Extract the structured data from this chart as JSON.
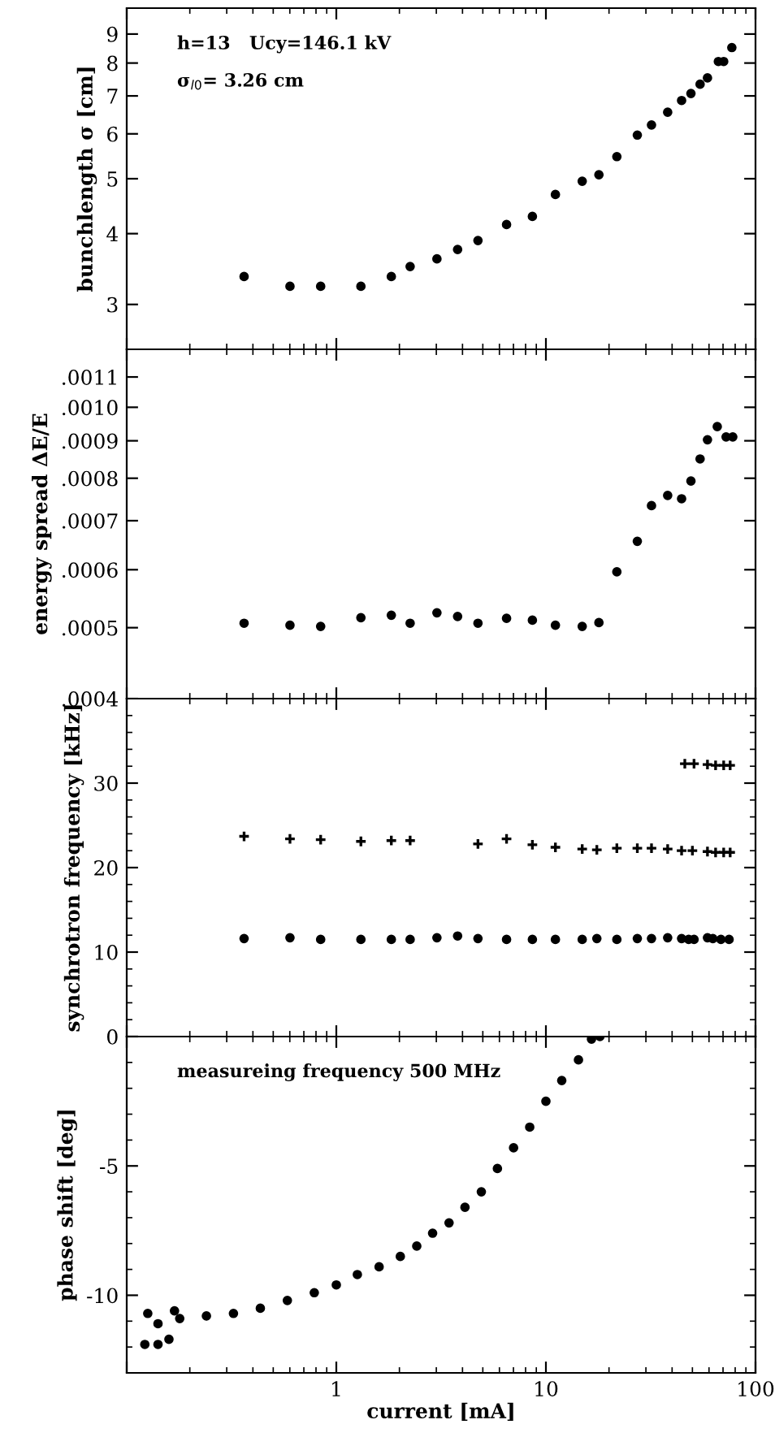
{
  "chart_data": [
    {
      "type": "scatter",
      "ylabel": "bunchlength σ [cm]",
      "log": "xy",
      "xlim": [
        0.1,
        100
      ],
      "xticks": [
        {
          "value": 0.1,
          "label": null
        },
        {
          "value": 1,
          "label": null
        },
        {
          "value": 10,
          "label": null
        },
        {
          "value": 100,
          "label": null
        }
      ],
      "ylim": [
        2.5,
        10
      ],
      "yticks": [
        3,
        4,
        5,
        6,
        7,
        8,
        9
      ],
      "tick_labels": "y",
      "marker": "circle",
      "annotations": [
        "h=13   Ucy=146.1 kV",
        "σ$_{l0}$= 3.26 cm"
      ],
      "series": [
        {
          "color": "#000000",
          "x": [
            0.363,
            0.601,
            0.842,
            1.31,
            1.83,
            2.25,
            3.02,
            3.79,
            4.74,
            6.49,
            8.62,
            11.1,
            14.9,
            17.9,
            21.8,
            27.3,
            31.9,
            38.1,
            44.4,
            49.2,
            54.4,
            59.0,
            66.5,
            70.5,
            77.1
          ],
          "values": [
            3.36,
            3.23,
            3.23,
            3.23,
            3.36,
            3.5,
            3.61,
            3.75,
            3.89,
            4.15,
            4.29,
            4.69,
            4.95,
            5.08,
            5.47,
            5.97,
            6.22,
            6.55,
            6.87,
            7.07,
            7.34,
            7.53,
            8.05,
            8.05,
            8.52
          ]
        }
      ]
    },
    {
      "type": "scatter",
      "ylabel": "energy spread ΔE/E",
      "log": "xy",
      "xlim": [
        0.1,
        100
      ],
      "xticks": [
        {
          "value": 0.1,
          "label": null
        },
        {
          "value": 1,
          "label": null
        },
        {
          "value": 10,
          "label": null
        },
        {
          "value": 100,
          "label": null
        }
      ],
      "ylim": [
        0.0004,
        0.0012
      ],
      "yticks": [
        {
          "value": 0.0004,
          "label": ".0004"
        },
        {
          "value": 0.0005,
          "label": ".0005"
        },
        {
          "value": 0.0006,
          "label": ".0006"
        },
        {
          "value": 0.0007,
          "label": ".0007"
        },
        {
          "value": 0.0008,
          "label": ".0008"
        },
        {
          "value": 0.0009,
          "label": ".0009"
        },
        {
          "value": 0.001,
          "label": ".0010"
        },
        {
          "value": 0.0011,
          "label": ".0011"
        }
      ],
      "tick_labels": "y",
      "marker": "circle",
      "series": [
        {
          "color": "#000000",
          "x": [
            0.363,
            0.601,
            0.842,
            1.31,
            1.83,
            2.25,
            3.02,
            3.79,
            4.74,
            6.49,
            8.62,
            11.1,
            14.9,
            17.9,
            21.8,
            27.3,
            31.9,
            38.1,
            44.4,
            49.2,
            54.4,
            59.0,
            65.7,
            72.4,
            77.9
          ],
          "values": [
            0.000507,
            0.000504,
            0.000502,
            0.000516,
            0.00052,
            0.000507,
            0.000524,
            0.000518,
            0.000507,
            0.000515,
            0.000512,
            0.000504,
            0.000502,
            0.000508,
            0.000596,
            0.000656,
            0.000734,
            0.000758,
            0.00075,
            0.000793,
            0.00085,
            0.000903,
            0.000941,
            0.000911,
            0.000911
          ]
        }
      ]
    },
    {
      "type": "scatter",
      "ylabel": "synchrotron frequency [kHz]",
      "log": "x",
      "xlim": [
        0.1,
        100
      ],
      "xticks": [
        {
          "value": 0.1,
          "label": null
        },
        {
          "value": 1,
          "label": null
        },
        {
          "value": 10,
          "label": null
        },
        {
          "value": 100,
          "label": null
        }
      ],
      "ylim": [
        0,
        40
      ],
      "yticks": [
        0,
        10,
        20,
        30
      ],
      "tick_labels": "y",
      "series": [
        {
          "color": "#000000",
          "marker": "circle",
          "x": [
            0.363,
            0.601,
            0.842,
            1.31,
            1.83,
            2.25,
            3.02,
            3.79,
            4.74,
            6.49,
            8.62,
            11.1,
            14.9,
            17.5,
            21.8,
            27.3,
            31.9,
            38.1,
            44.4,
            48.0,
            50.9,
            59.0,
            62.6,
            68.4,
            74.8
          ],
          "values": [
            11.6,
            11.7,
            11.5,
            11.5,
            11.5,
            11.5,
            11.7,
            11.9,
            11.6,
            11.5,
            11.5,
            11.5,
            11.5,
            11.6,
            11.5,
            11.6,
            11.6,
            11.7,
            11.6,
            11.5,
            11.5,
            11.7,
            11.6,
            11.5,
            11.5
          ]
        },
        {
          "color": "#000000",
          "marker": "cross",
          "x": [
            0.363,
            0.601,
            0.842,
            1.31,
            1.83,
            2.25,
            4.74,
            6.49,
            8.62,
            11.1,
            14.9,
            17.5,
            21.8,
            27.3,
            31.9,
            38.1,
            44.4,
            50.0,
            59.0,
            64.5,
            70.5,
            75.7
          ],
          "values": [
            23.7,
            23.4,
            23.3,
            23.1,
            23.2,
            23.2,
            22.8,
            23.4,
            22.7,
            22.4,
            22.2,
            22.1,
            22.3,
            22.3,
            22.3,
            22.2,
            22.0,
            22.0,
            21.9,
            21.8,
            21.8,
            21.8
          ]
        },
        {
          "color": "#000000",
          "marker": "cross",
          "x": [
            46.0,
            50.9,
            59.0,
            64.5,
            70.5,
            75.7
          ],
          "values": [
            32.3,
            32.3,
            32.2,
            32.1,
            32.1,
            32.1
          ]
        }
      ]
    },
    {
      "type": "scatter",
      "ylabel": "phase shift [deg]",
      "xlabel": "current [mA]",
      "log": "x",
      "xlim": [
        0.1,
        100
      ],
      "xticks": [
        {
          "value": 0.1,
          "label": null
        },
        {
          "value": 1,
          "label": "1"
        },
        {
          "value": 10,
          "label": "10"
        },
        {
          "value": 100,
          "label": "100"
        }
      ],
      "ylim": [
        -13,
        0
      ],
      "yticks": [
        {
          "value": 0,
          "label": null
        },
        -5,
        -10
      ],
      "marker": "circle",
      "annotations": [
        "measureing frequency 500 MHz"
      ],
      "series": [
        {
          "color": "#000000",
          "x": [
            0.122,
            0.126,
            0.141,
            0.141,
            0.159,
            0.169,
            0.179,
            0.24,
            0.323,
            0.434,
            0.584,
            0.785,
            1.0,
            1.26,
            1.6,
            2.02,
            2.42,
            2.88,
            3.45,
            4.11,
            4.92,
            5.87,
            7.01,
            8.37,
            10,
            11.9,
            14.3,
            16.5,
            18.1
          ],
          "values": [
            -11.9,
            -10.7,
            -11.1,
            -11.9,
            -11.7,
            -10.6,
            -10.9,
            -10.8,
            -10.7,
            -10.5,
            -10.2,
            -9.9,
            -9.6,
            -9.2,
            -8.9,
            -8.5,
            -8.1,
            -7.6,
            -7.2,
            -6.6,
            -6.0,
            -5.1,
            -4.3,
            -3.5,
            -2.5,
            -1.7,
            -0.9,
            -0.1,
            0
          ]
        }
      ]
    }
  ]
}
